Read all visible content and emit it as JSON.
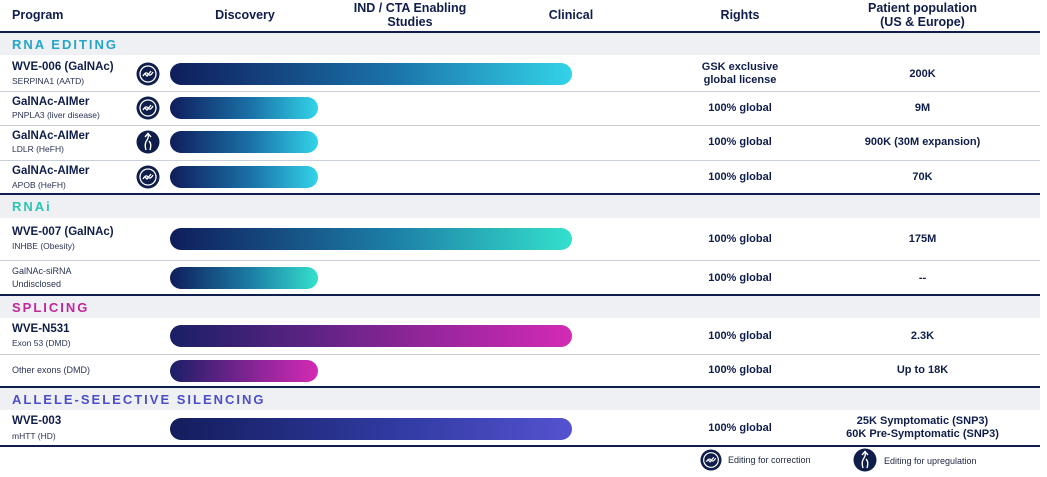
{
  "headers": {
    "program": "Program",
    "discovery": "Discovery",
    "ind_line1": "IND / CTA Enabling",
    "ind_line2": "Studies",
    "clinical": "Clinical",
    "rights": "Rights",
    "population_line1": "Patient population",
    "population_line2": "(US & Europe)"
  },
  "sections": {
    "rna_editing": "RNA EDITING",
    "rnai": "RNAi",
    "splicing": "SPLICING",
    "allele": "ALLELE-SELECTIVE SILENCING"
  },
  "programs": [
    {
      "name": "WVE-006 (GalNAc)",
      "sub": "SERPINA1 (AATD)",
      "icon": "editing-correction-icon",
      "stage": "clinical",
      "progress": 1.0,
      "rights_line1": "GSK exclusive",
      "rights_line2": "global license",
      "population": "200K"
    },
    {
      "name": "GalNAc-AIMer",
      "sub": "PNPLA3 (liver disease)",
      "icon": "editing-correction-icon",
      "stage": "discovery",
      "progress": 0.37,
      "rights_line1": "100% global",
      "population": "9M"
    },
    {
      "name": "GalNAc-AIMer",
      "sub": "LDLR (HeFH)",
      "icon": "editing-upregulation-icon",
      "stage": "discovery",
      "progress": 0.37,
      "rights_line1": "100% global",
      "population": "900K (30M expansion)"
    },
    {
      "name": "GalNAc-AIMer",
      "sub": "APOB (HeFH)",
      "icon": "editing-correction-icon",
      "stage": "discovery",
      "progress": 0.37,
      "rights_line1": "100% global",
      "population": "70K"
    },
    {
      "name": "WVE-007 (GalNAc)",
      "sub": "INHBE (Obesity)",
      "stage": "clinical",
      "progress": 1.0,
      "rights_line1": "100% global",
      "population": "175M"
    },
    {
      "name": "GalNAc-siRNA",
      "sub": "Undisclosed",
      "stage": "discovery",
      "progress": 0.37,
      "rights_line1": "100% global",
      "population": "--"
    },
    {
      "name": "WVE-N531",
      "sub": "Exon 53 (DMD)",
      "stage": "clinical",
      "progress": 1.0,
      "rights_line1": "100% global",
      "population": "2.3K"
    },
    {
      "name": "Other exons (DMD)",
      "sub": "",
      "stage": "discovery",
      "progress": 0.37,
      "rights_line1": "100% global",
      "population": "Up to 18K"
    },
    {
      "name": "WVE-003",
      "sub": "mHTT (HD)",
      "stage": "clinical",
      "progress": 1.0,
      "rights_line1": "100% global",
      "population_line1": "25K Symptomatic (SNP3)",
      "population_line2": "60K Pre-Symptomatic (SNP3)"
    }
  ],
  "legend": {
    "correction": "Editing for correction",
    "upregulation": "Editing for upregulation"
  },
  "colors": {
    "navy": "#0f1d4a",
    "rna_editing": "#25a6c9",
    "rnai": "#2bc5b4",
    "splicing": "#c2269c",
    "allele": "#4c4fc4"
  }
}
